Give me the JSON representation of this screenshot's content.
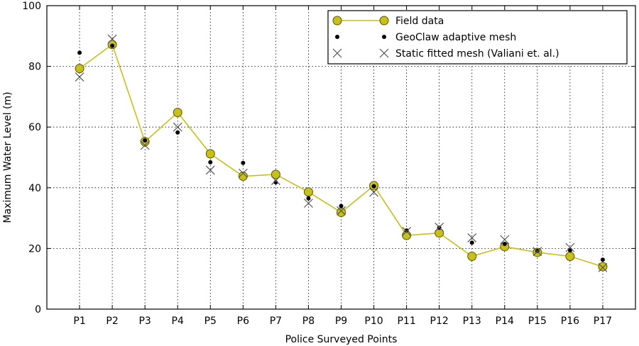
{
  "chart_data": {
    "type": "line",
    "title": "",
    "xlabel": "Police Surveyed Points",
    "ylabel": "Maximum Water Level (m)",
    "ylim": [
      0,
      100
    ],
    "yticks": [
      0,
      20,
      40,
      60,
      80,
      100
    ],
    "grid": true,
    "legend_position": "top-right",
    "categories": [
      "P1",
      "P2",
      "P3",
      "P4",
      "P5",
      "P6",
      "P7",
      "P8",
      "P9",
      "P10",
      "P11",
      "P12",
      "P13",
      "P14",
      "P15",
      "P16",
      "P17"
    ],
    "series": [
      {
        "name": "Field data",
        "style": "line-circle",
        "color": "#c8c019",
        "values": [
          79.3,
          87.2,
          55.2,
          64.8,
          51.2,
          43.8,
          44.4,
          38.6,
          31.9,
          40.7,
          24.3,
          25.1,
          17.4,
          20.6,
          18.7,
          17.4,
          14.0
        ]
      },
      {
        "name": "GeoClaw adaptive mesh",
        "style": "dot",
        "color": "#000000",
        "values": [
          84.5,
          86.8,
          55.6,
          58.2,
          48.4,
          48.2,
          41.8,
          36.5,
          34.0,
          40.5,
          25.9,
          26.8,
          21.9,
          21.5,
          19.2,
          19.4,
          16.3
        ]
      },
      {
        "name": "Static fitted mesh (Valiani et. al.)",
        "style": "cross",
        "color": "#555555",
        "values": [
          76.5,
          89.0,
          54.0,
          60.0,
          45.8,
          44.8,
          42.4,
          34.9,
          32.4,
          38.5,
          25.6,
          27.0,
          23.5,
          22.9,
          19.0,
          20.3,
          13.7
        ]
      }
    ]
  }
}
